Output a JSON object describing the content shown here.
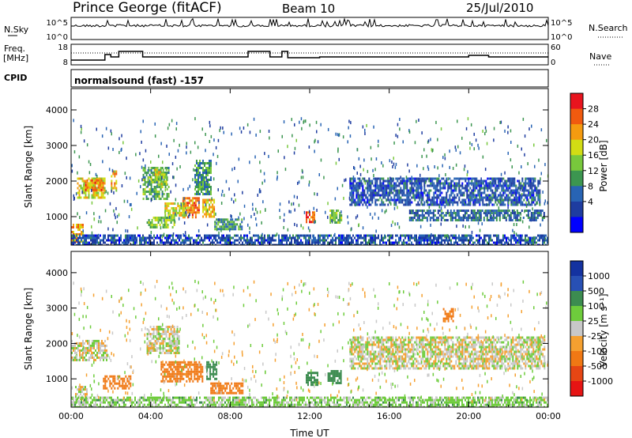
{
  "header": {
    "station": "Prince George (fitACF)",
    "beam": "Beam 10",
    "date": "25/Jul/2010"
  },
  "nsky_panel": {
    "left_label": "N.Sky",
    "right_label": "N.Search",
    "left_ticks": [
      "10^5",
      "10^0"
    ],
    "right_ticks": [
      "10^5",
      "10^0"
    ]
  },
  "freq_panel": {
    "left_label_1": "Freq.",
    "left_label_2": "[MHz]",
    "right_label": "Nave",
    "left_ticks": [
      "18",
      "8"
    ],
    "right_ticks": [
      "60",
      "0"
    ],
    "cpid_label": "CPID"
  },
  "cpid_text": "normalsound (fast) -157",
  "power_colorbar": {
    "title": "Power [dB]",
    "ticks": [
      "28",
      "24",
      "20",
      "16",
      "12",
      "8",
      "4"
    ],
    "colors": [
      "#e8141e",
      "#f05a0f",
      "#f59b10",
      "#d2dc14",
      "#78c83c",
      "#3c9650",
      "#2864b4",
      "#1e3ca0",
      "#0000ff"
    ]
  },
  "velocity_colorbar": {
    "title": "Velocity [m s⁻¹]",
    "ticks": [
      "1000",
      "500",
      "100",
      "25",
      "-25",
      "-100",
      "-500",
      "-1000"
    ],
    "colors": [
      "#1432a0",
      "#2850b4",
      "#3c8c50",
      "#6ecc3c",
      "#c8c8c8",
      "#f5a030",
      "#f07814",
      "#e64614",
      "#e61414"
    ]
  },
  "chart_data": [
    {
      "type": "heatmap",
      "name": "power",
      "ylabel": "Slant Range [km]",
      "y_ticks": [
        "1000",
        "2000",
        "3000",
        "4000"
      ],
      "ylim": [
        200,
        4600
      ],
      "xlim": [
        0,
        24
      ],
      "regions": [
        {
          "t0": 0.0,
          "t1": 0.6,
          "r0": 300,
          "r1": 800,
          "level": 24
        },
        {
          "t0": 0.3,
          "t1": 1.7,
          "r0": 1500,
          "r1": 2100,
          "level": 20
        },
        {
          "t0": 0.7,
          "t1": 1.6,
          "r0": 1750,
          "r1": 2050,
          "level": 26
        },
        {
          "t0": 2.0,
          "t1": 2.3,
          "r0": 1750,
          "r1": 2300,
          "level": 22
        },
        {
          "t0": 3.6,
          "t1": 4.9,
          "r0": 1500,
          "r1": 2400,
          "level": 14
        },
        {
          "t0": 4.2,
          "t1": 4.8,
          "r0": 1900,
          "r1": 2350,
          "level": 18
        },
        {
          "t0": 5.6,
          "t1": 6.4,
          "r0": 950,
          "r1": 1550,
          "level": 26
        },
        {
          "t0": 4.7,
          "t1": 5.8,
          "r0": 1000,
          "r1": 1400,
          "level": 20
        },
        {
          "t0": 3.8,
          "t1": 5.2,
          "r0": 700,
          "r1": 1000,
          "level": 16
        },
        {
          "t0": 6.2,
          "t1": 7.0,
          "r0": 1600,
          "r1": 2600,
          "level": 12
        },
        {
          "t0": 6.6,
          "t1": 7.2,
          "r0": 1000,
          "r1": 1500,
          "level": 22
        },
        {
          "t0": 7.2,
          "t1": 8.6,
          "r0": 650,
          "r1": 950,
          "level": 12
        },
        {
          "t0": 11.8,
          "t1": 12.2,
          "r0": 850,
          "r1": 1150,
          "level": 28
        },
        {
          "t0": 13.0,
          "t1": 13.6,
          "r0": 850,
          "r1": 1200,
          "level": 16
        },
        {
          "t0": 14.0,
          "t1": 23.6,
          "r0": 1300,
          "r1": 2100,
          "level": 6
        },
        {
          "t0": 17.0,
          "t1": 23.8,
          "r0": 900,
          "r1": 1200,
          "level": 8
        },
        {
          "t0": 0.0,
          "t1": 24.0,
          "r0": 200,
          "r1": 500,
          "level": 6
        }
      ]
    },
    {
      "type": "heatmap",
      "name": "velocity",
      "ylabel": "Slant Range [km]",
      "xlabel": "Time UT",
      "x_ticks": [
        "00:00",
        "04:00",
        "08:00",
        "12:00",
        "16:00",
        "20:00",
        "00:00"
      ],
      "y_ticks": [
        "1000",
        "2000",
        "3000",
        "4000"
      ],
      "ylim": [
        200,
        4600
      ],
      "xlim": [
        0,
        24
      ],
      "regions": [
        {
          "t0": 0.0,
          "t1": 1.8,
          "r0": 1500,
          "r1": 2100,
          "level": 0
        },
        {
          "t0": 0.2,
          "t1": 0.8,
          "r0": 300,
          "r1": 800,
          "level": 0
        },
        {
          "t0": 1.6,
          "t1": 3.0,
          "r0": 700,
          "r1": 1100,
          "level": -400
        },
        {
          "t0": 3.8,
          "t1": 5.4,
          "r0": 1700,
          "r1": 2500,
          "level": 0
        },
        {
          "t0": 4.5,
          "t1": 6.6,
          "r0": 900,
          "r1": 1500,
          "level": -400
        },
        {
          "t0": 6.8,
          "t1": 7.3,
          "r0": 1000,
          "r1": 1500,
          "level": 300
        },
        {
          "t0": 7.0,
          "t1": 8.6,
          "r0": 600,
          "r1": 900,
          "level": -200
        },
        {
          "t0": 11.8,
          "t1": 12.4,
          "r0": 800,
          "r1": 1200,
          "level": 300
        },
        {
          "t0": 12.9,
          "t1": 13.6,
          "r0": 850,
          "r1": 1250,
          "level": 300
        },
        {
          "t0": 14.0,
          "t1": 23.8,
          "r0": 1300,
          "r1": 2200,
          "level": 0
        },
        {
          "t0": 18.7,
          "t1": 19.2,
          "r0": 2600,
          "r1": 3000,
          "level": -200
        },
        {
          "t0": 0.0,
          "t1": 24.0,
          "r0": 200,
          "r1": 500,
          "level": 50
        }
      ]
    }
  ]
}
